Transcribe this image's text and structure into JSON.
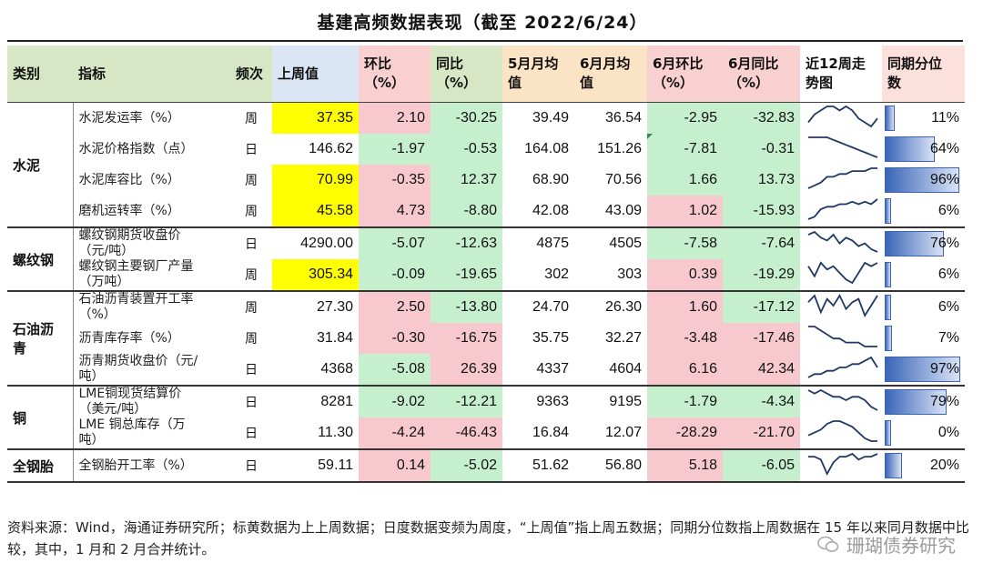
{
  "title": "基建高频数据表现（截至 2022/6/24）",
  "headers": [
    "类别",
    "指标",
    "频次",
    "上周值",
    "环比\n（%）",
    "同比\n（%）",
    "5月月均\n值",
    "6月月均\n值",
    "6月环比\n（%）",
    "6月同比\n（%）",
    "近12周走\n势图",
    "同期分位\n数"
  ],
  "groups": [
    {
      "category": "水泥",
      "rows": [
        {
          "indicator": "水泥发运率（%）",
          "freq": "周",
          "last_week": "37.35",
          "wow": "2.10",
          "yoy": "-30.25",
          "may_avg": "39.49",
          "jun_avg": "36.54",
          "jun_mom": "-2.95",
          "jun_yoy": "-32.83",
          "pct": "11%",
          "pct_value": 0.11,
          "hl_yellow": true,
          "wow_color": "red",
          "yoy_color": "green",
          "mom_color": "green",
          "jyoy_color": "green",
          "trend": [
            5,
            7,
            8,
            9,
            9,
            8,
            9,
            8,
            6,
            5,
            4,
            6
          ]
        },
        {
          "indicator": "水泥价格指数（点）",
          "freq": "日",
          "last_week": "146.62",
          "wow": "-1.97",
          "yoy": "-0.53",
          "may_avg": "164.08",
          "jun_avg": "151.26",
          "jun_mom": "-7.81",
          "jun_yoy": "-0.31",
          "pct": "64%",
          "pct_value": 0.64,
          "hl_yellow": false,
          "wow_color": "green",
          "yoy_color": "green",
          "mom_color": "green",
          "jyoy_color": "green",
          "trend": [
            10,
            10,
            10,
            10,
            9,
            8,
            7,
            6,
            5,
            4,
            3,
            2
          ],
          "mark": true
        },
        {
          "indicator": "水泥库容比（%）",
          "freq": "周",
          "last_week": "70.99",
          "wow": "-0.35",
          "yoy": "12.37",
          "may_avg": "68.90",
          "jun_avg": "70.56",
          "jun_mom": "1.66",
          "jun_yoy": "13.73",
          "pct": "96%",
          "pct_value": 0.96,
          "hl_yellow": true,
          "wow_color": "red",
          "yoy_color": "green",
          "mom_color": "green",
          "jyoy_color": "green",
          "trend": [
            2,
            3,
            4,
            6,
            6,
            7,
            7,
            8,
            8,
            8,
            9,
            9
          ]
        },
        {
          "indicator": "磨机运转率（%）",
          "freq": "周",
          "last_week": "45.58",
          "wow": "4.73",
          "yoy": "-8.80",
          "may_avg": "42.08",
          "jun_avg": "43.09",
          "jun_mom": "1.02",
          "jun_yoy": "-15.93",
          "pct": "6%",
          "pct_value": 0.06,
          "hl_yellow": true,
          "wow_color": "red",
          "yoy_color": "green",
          "mom_color": "red",
          "jyoy_color": "green",
          "trend": [
            2,
            3,
            6,
            7,
            7,
            8,
            8,
            9,
            8,
            9,
            8,
            10
          ]
        }
      ]
    },
    {
      "category": "螺纹钢",
      "rows": [
        {
          "indicator": "螺纹钢期货收盘价\n（元/吨）",
          "freq": "日",
          "last_week": "4290.00",
          "wow": "-5.07",
          "yoy": "-12.63",
          "may_avg": "4875",
          "jun_avg": "4505",
          "jun_mom": "-7.58",
          "jun_yoy": "-7.64",
          "pct": "76%",
          "pct_value": 0.76,
          "hl_yellow": false,
          "wow_color": "green",
          "yoy_color": "green",
          "mom_color": "green",
          "jyoy_color": "green",
          "trend": [
            8,
            9,
            7,
            6,
            8,
            5,
            7,
            6,
            4,
            5,
            3,
            2
          ]
        },
        {
          "indicator": "螺纹钢主要钢厂产量\n（万吨）",
          "freq": "周",
          "last_week": "305.34",
          "wow": "-0.09",
          "yoy": "-19.65",
          "may_avg": "302",
          "jun_avg": "303",
          "jun_mom": "0.39",
          "jun_yoy": "-19.29",
          "pct": "6%",
          "pct_value": 0.06,
          "hl_yellow": true,
          "wow_color": "green",
          "yoy_color": "green",
          "mom_color": "red",
          "jyoy_color": "green",
          "trend": [
            8,
            5,
            9,
            7,
            8,
            6,
            4,
            3,
            6,
            9,
            8,
            9
          ]
        }
      ]
    },
    {
      "category": "石油沥青",
      "rows": [
        {
          "indicator": "石油沥青装置开工率\n（%）",
          "freq": "周",
          "last_week": "27.30",
          "wow": "2.50",
          "yoy": "-13.80",
          "may_avg": "24.70",
          "jun_avg": "26.30",
          "jun_mom": "1.60",
          "jun_yoy": "-17.12",
          "pct": "6%",
          "pct_value": 0.06,
          "hl_yellow": false,
          "wow_color": "red",
          "yoy_color": "green",
          "mom_color": "red",
          "jyoy_color": "green",
          "trend": [
            7,
            9,
            4,
            8,
            6,
            9,
            5,
            7,
            8,
            3,
            6,
            9
          ]
        },
        {
          "indicator": "沥青库存率（%）",
          "freq": "周",
          "last_week": "31.84",
          "wow": "-0.30",
          "yoy": "-16.75",
          "may_avg": "35.75",
          "jun_avg": "32.27",
          "jun_mom": "-3.48",
          "jun_yoy": "-17.46",
          "pct": "7%",
          "pct_value": 0.07,
          "hl_yellow": false,
          "wow_color": "red",
          "yoy_color": "red",
          "mom_color": "red",
          "jyoy_color": "red",
          "trend": [
            9,
            9,
            8,
            7,
            6,
            6,
            5,
            5,
            5,
            4,
            4,
            4
          ]
        },
        {
          "indicator": "沥青期货收盘价（元/\n吨）",
          "freq": "日",
          "last_week": "4368",
          "wow": "-5.08",
          "yoy": "26.39",
          "may_avg": "4337",
          "jun_avg": "4604",
          "jun_mom": "6.16",
          "jun_yoy": "42.34",
          "pct": "97%",
          "pct_value": 0.97,
          "hl_yellow": false,
          "wow_color": "green",
          "yoy_color": "red",
          "mom_color": "red",
          "jyoy_color": "red",
          "trend": [
            3,
            4,
            4,
            5,
            5,
            6,
            6,
            7,
            7,
            8,
            9,
            6
          ]
        }
      ]
    },
    {
      "category": "铜",
      "rows": [
        {
          "indicator": "LME铜现货结算价\n（美元/吨）",
          "freq": "日",
          "last_week": "8281",
          "wow": "-9.02",
          "yoy": "-12.21",
          "may_avg": "9363",
          "jun_avg": "9195",
          "jun_mom": "-1.79",
          "jun_yoy": "-4.34",
          "pct": "79%",
          "pct_value": 0.79,
          "hl_yellow": false,
          "wow_color": "green",
          "yoy_color": "green",
          "mom_color": "green",
          "jyoy_color": "green",
          "trend": [
            9,
            8,
            9,
            8,
            7,
            7,
            6,
            7,
            7,
            6,
            4,
            3
          ]
        },
        {
          "indicator": "LME 铜总库存（万\n吨）",
          "freq": "日",
          "last_week": "11.30",
          "wow": "-4.24",
          "yoy": "-46.43",
          "may_avg": "16.84",
          "jun_avg": "12.07",
          "jun_mom": "-28.29",
          "jun_yoy": "-21.70",
          "pct": "0%",
          "pct_value": 0.0,
          "hl_yellow": false,
          "wow_color": "red",
          "yoy_color": "red",
          "mom_color": "red",
          "jyoy_color": "red",
          "trend": [
            4,
            5,
            6,
            8,
            9,
            9,
            8,
            7,
            5,
            3,
            2,
            2
          ]
        }
      ]
    },
    {
      "category": "全钢胎",
      "rows": [
        {
          "indicator": "全钢胎开工率（%）",
          "freq": "日",
          "last_week": "59.11",
          "wow": "0.14",
          "yoy": "-5.02",
          "may_avg": "51.62",
          "jun_avg": "56.80",
          "jun_mom": "5.18",
          "jun_yoy": "-6.05",
          "pct": "20%",
          "pct_value": 0.2,
          "hl_yellow": false,
          "wow_color": "red",
          "yoy_color": "green",
          "mom_color": "red",
          "jyoy_color": "green",
          "trend": [
            8,
            8,
            7,
            2,
            6,
            8,
            8,
            9,
            7,
            8,
            8,
            9
          ]
        }
      ]
    }
  ],
  "footnote": "资料来源：Wind，海通证券研究所；标黄数据为上上周数据；日度数据变频为周度，“上周值”指上周五数据；同期分位数指上周数据在 15 年以来同月数据中比较，其中，1 月和 2 月合并统计。",
  "watermark": "珊瑚债券研究",
  "colors": {
    "yellow": "#ffff00",
    "red": "#f7c9ce",
    "green": "#c6efce",
    "hdr_green": "#d7e7c5",
    "hdr_blue": "#dae6f4",
    "hdr_red": "#f8d0cf",
    "hdr_orange": "#fbe3c6",
    "hdr_white": "#ffffff",
    "hdr_pink": "#fbe0dc"
  }
}
